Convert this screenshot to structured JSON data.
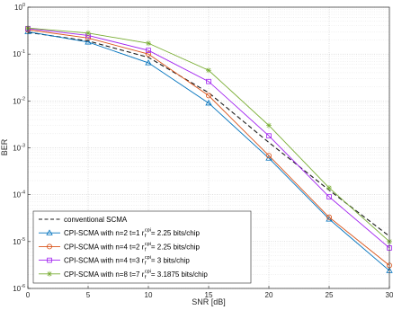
{
  "chart_data": {
    "type": "line",
    "xlabel": "SNR [dB]",
    "ylabel": "BER",
    "xlim": [
      0,
      30
    ],
    "ylim_exp": [
      -6,
      0
    ],
    "yscale": "log",
    "grid": true,
    "legend_position": "bottom-left",
    "x": [
      0,
      5,
      10,
      15,
      20,
      25,
      30
    ],
    "x_tick_labels": [
      "0",
      "5",
      "10",
      "15",
      "20",
      "25",
      "30"
    ],
    "y_tick_labels": [
      {
        "base": "10",
        "exp": "0"
      },
      {
        "base": "10",
        "exp": "-1"
      },
      {
        "base": "10",
        "exp": "-2"
      },
      {
        "base": "10",
        "exp": "-3"
      },
      {
        "base": "10",
        "exp": "-4"
      },
      {
        "base": "10",
        "exp": "-5"
      },
      {
        "base": "10",
        "exp": "-6"
      }
    ],
    "series": [
      {
        "name": "conventional SCMA",
        "color": "#1a1a1a",
        "dash": true,
        "marker": "none",
        "values": [
          0.29,
          0.19,
          0.085,
          0.015,
          0.0013,
          0.000125,
          1.3e-05
        ],
        "legend": {
          "pre": "conventional SCMA",
          "sup": "",
          "sub": "",
          "post": ""
        }
      },
      {
        "name": "CPI-SCMA with n=2 t=1 r_f^cpi = 2.25 bits/chip",
        "color": "#0072bd",
        "dash": false,
        "marker": "triangle",
        "values": [
          0.3,
          0.18,
          0.065,
          0.009,
          0.0006,
          3e-05,
          2.4e-06
        ],
        "legend": {
          "pre": "CPI-SCMA with n=2 t=1 r",
          "sup": "cpi",
          "sub": "f",
          "post": " = 2.25 bits/chip"
        }
      },
      {
        "name": "CPI-SCMA with n=4 t=2 r_f^cpi = 2.25 bits/chip",
        "color": "#d95319",
        "dash": false,
        "marker": "circle",
        "values": [
          0.33,
          0.22,
          0.1,
          0.013,
          0.00068,
          3.3e-05,
          3.1e-06
        ],
        "legend": {
          "pre": "CPI-SCMA with n=4 t=2 r",
          "sup": "cpi",
          "sub": "f",
          "post": " = 2.25 bits/chip"
        }
      },
      {
        "name": "CPI-SCMA with n=4 t=3 r_f^cpi = 3 bits/chip",
        "color": "#a020f0",
        "dash": false,
        "marker": "square",
        "values": [
          0.35,
          0.25,
          0.12,
          0.026,
          0.0018,
          9e-05,
          7.3e-06
        ],
        "legend": {
          "pre": "CPI-SCMA with n=4 t=3 r",
          "sup": "cpi",
          "sub": "f",
          "post": " = 3 bits/chip"
        }
      },
      {
        "name": "CPI-SCMA with n=8 t=7 r_f^cpi = 3.1875 bits/chip",
        "color": "#77ac30",
        "dash": false,
        "marker": "star",
        "values": [
          0.36,
          0.28,
          0.17,
          0.045,
          0.003,
          0.00014,
          1e-05
        ],
        "legend": {
          "pre": "CPI-SCMA with n=8 t=7 r",
          "sup": "cpi",
          "sub": "f",
          "post": " = 3.1875 bits/chip"
        }
      }
    ]
  }
}
